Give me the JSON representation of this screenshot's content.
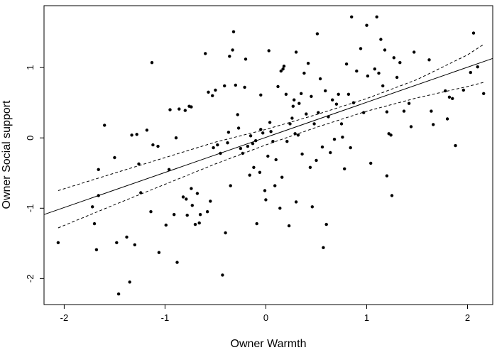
{
  "chart_data": {
    "type": "scatter",
    "title": "",
    "xlabel": "Owner Warmth",
    "ylabel": "Owner Social support",
    "xlim": [
      -2.2,
      2.25
    ],
    "ylim": [
      -2.37,
      1.88
    ],
    "xticks": [
      -2,
      -1,
      0,
      1,
      2
    ],
    "xtick_labels": [
      "-2",
      "-1",
      "0",
      "1",
      "2"
    ],
    "yticks": [
      -2,
      -1,
      0,
      1
    ],
    "ytick_labels": [
      "-2",
      "-1",
      "0",
      "1"
    ],
    "grid": false,
    "legend": "none",
    "point_color": "#000000",
    "points": [
      [
        -2.06,
        -1.49
      ],
      [
        -1.72,
        -0.98
      ],
      [
        -1.7,
        -1.22
      ],
      [
        -1.68,
        -1.59
      ],
      [
        -1.66,
        -0.45
      ],
      [
        -1.66,
        -0.82
      ],
      [
        -1.6,
        0.18
      ],
      [
        -1.5,
        -0.28
      ],
      [
        -1.48,
        -1.49
      ],
      [
        -1.46,
        -2.22
      ],
      [
        -1.38,
        -1.41
      ],
      [
        -1.35,
        -2.05
      ],
      [
        -1.33,
        0.04
      ],
      [
        -1.3,
        -1.52
      ],
      [
        -1.28,
        0.05
      ],
      [
        -1.26,
        -0.37
      ],
      [
        -1.24,
        -0.78
      ],
      [
        -1.18,
        0.11
      ],
      [
        -1.14,
        -1.05
      ],
      [
        -1.13,
        1.07
      ],
      [
        -1.12,
        -0.1
      ],
      [
        -1.07,
        -0.12
      ],
      [
        -1.06,
        -1.63
      ],
      [
        -0.99,
        -1.24
      ],
      [
        -0.96,
        -0.45
      ],
      [
        -0.95,
        0.4
      ],
      [
        -0.91,
        -1.09
      ],
      [
        -0.89,
        0.0
      ],
      [
        -0.88,
        -1.77
      ],
      [
        -0.86,
        0.41
      ],
      [
        -0.82,
        -0.84
      ],
      [
        -0.8,
        0.39
      ],
      [
        -0.79,
        -0.87
      ],
      [
        -0.78,
        -1.1
      ],
      [
        -0.76,
        0.45
      ],
      [
        -0.74,
        -0.72
      ],
      [
        -0.74,
        0.44
      ],
      [
        -0.73,
        -0.96
      ],
      [
        -0.7,
        -1.23
      ],
      [
        -0.68,
        -0.79
      ],
      [
        -0.66,
        -1.21
      ],
      [
        -0.65,
        -1.09
      ],
      [
        -0.6,
        1.2
      ],
      [
        -0.58,
        -1.05
      ],
      [
        -0.57,
        0.65
      ],
      [
        -0.55,
        -0.9
      ],
      [
        -0.53,
        0.6
      ],
      [
        -0.52,
        -0.14
      ],
      [
        -0.5,
        0.68
      ],
      [
        -0.48,
        -0.1
      ],
      [
        -0.45,
        -0.22
      ],
      [
        -0.43,
        -1.95
      ],
      [
        -0.41,
        0.74
      ],
      [
        -0.4,
        -1.35
      ],
      [
        -0.38,
        -0.07
      ],
      [
        -0.37,
        0.08
      ],
      [
        -0.36,
        1.16
      ],
      [
        -0.35,
        -0.68
      ],
      [
        -0.33,
        1.25
      ],
      [
        -0.32,
        1.51
      ],
      [
        -0.3,
        0.75
      ],
      [
        -0.28,
        0.33
      ],
      [
        -0.27,
        0.14
      ],
      [
        -0.25,
        -0.15
      ],
      [
        -0.23,
        -0.22
      ],
      [
        -0.21,
        0.72
      ],
      [
        -0.2,
        1.12
      ],
      [
        -0.18,
        -0.12
      ],
      [
        -0.16,
        -0.53
      ],
      [
        -0.15,
        0.03
      ],
      [
        -0.13,
        -0.08
      ],
      [
        -0.12,
        -0.42
      ],
      [
        -0.1,
        -0.04
      ],
      [
        -0.09,
        -1.22
      ],
      [
        -0.06,
        -0.49
      ],
      [
        -0.05,
        0.61
      ],
      [
        -0.03,
        0.07
      ],
      [
        -0.01,
        -0.75
      ],
      [
        0.0,
        -0.88
      ],
      [
        0.02,
        -0.26
      ],
      [
        0.03,
        1.24
      ],
      [
        0.04,
        0.22
      ],
      [
        0.05,
        0.09
      ],
      [
        0.07,
        -0.05
      ],
      [
        0.09,
        -0.68
      ],
      [
        0.1,
        -0.31
      ],
      [
        0.12,
        0.73
      ],
      [
        0.14,
        -1.0
      ],
      [
        0.16,
        -0.56
      ],
      [
        0.17,
        0.98
      ],
      [
        0.18,
        1.02
      ],
      [
        0.2,
        0.62
      ],
      [
        0.21,
        -0.05
      ],
      [
        0.23,
        -1.25
      ],
      [
        0.24,
        0.2
      ],
      [
        0.26,
        0.28
      ],
      [
        0.28,
        0.54
      ],
      [
        0.29,
        0.06
      ],
      [
        0.3,
        -0.91
      ],
      [
        0.3,
        1.22
      ],
      [
        0.32,
        0.04
      ],
      [
        0.33,
        0.49
      ],
      [
        0.35,
        0.63
      ],
      [
        0.36,
        -0.23
      ],
      [
        0.38,
        0.92
      ],
      [
        0.4,
        0.34
      ],
      [
        0.42,
        1.06
      ],
      [
        0.44,
        -0.42
      ],
      [
        0.45,
        0.59
      ],
      [
        0.46,
        -0.98
      ],
      [
        0.48,
        0.2
      ],
      [
        0.5,
        -0.32
      ],
      [
        0.51,
        1.48
      ],
      [
        0.52,
        0.36
      ],
      [
        0.54,
        0.84
      ],
      [
        0.56,
        -0.13
      ],
      [
        0.57,
        -1.56
      ],
      [
        0.59,
        0.67
      ],
      [
        0.6,
        -1.23
      ],
      [
        0.62,
        0.3
      ],
      [
        0.64,
        -0.21
      ],
      [
        0.66,
        0.54
      ],
      [
        0.68,
        -0.02
      ],
      [
        0.7,
        0.48
      ],
      [
        0.72,
        0.62
      ],
      [
        0.75,
        0.2
      ],
      [
        0.76,
        0.01
      ],
      [
        0.78,
        -0.44
      ],
      [
        0.8,
        1.05
      ],
      [
        0.82,
        0.62
      ],
      [
        0.84,
        -0.14
      ],
      [
        0.85,
        1.72
      ],
      [
        0.87,
        0.5
      ],
      [
        0.9,
        0.95
      ],
      [
        0.94,
        1.27
      ],
      [
        0.97,
        0.36
      ],
      [
        1.0,
        1.6
      ],
      [
        1.01,
        0.88
      ],
      [
        1.04,
        -0.36
      ],
      [
        1.08,
        0.98
      ],
      [
        1.1,
        1.72
      ],
      [
        1.12,
        0.92
      ],
      [
        1.14,
        1.4
      ],
      [
        1.16,
        0.74
      ],
      [
        1.18,
        1.25
      ],
      [
        1.2,
        -0.54
      ],
      [
        1.22,
        0.06
      ],
      [
        1.24,
        0.04
      ],
      [
        1.25,
        -0.82
      ],
      [
        1.27,
        1.14
      ],
      [
        1.3,
        0.86
      ],
      [
        1.33,
        1.07
      ],
      [
        1.37,
        0.38
      ],
      [
        1.42,
        0.49
      ],
      [
        1.44,
        0.16
      ],
      [
        1.47,
        1.22
      ],
      [
        1.62,
        1.11
      ],
      [
        1.64,
        0.38
      ],
      [
        1.66,
        0.19
      ],
      [
        1.78,
        0.67
      ],
      [
        1.8,
        0.27
      ],
      [
        1.82,
        0.58
      ],
      [
        1.85,
        0.56
      ],
      [
        1.88,
        -0.11
      ],
      [
        1.96,
        0.68
      ],
      [
        2.03,
        0.93
      ],
      [
        2.06,
        1.49
      ],
      [
        2.1,
        1.01
      ],
      [
        2.16,
        0.63
      ],
      [
        1.2,
        0.37
      ],
      [
        0.27,
        0.45
      ],
      [
        -0.05,
        0.12
      ],
      [
        0.15,
        0.95
      ]
    ],
    "lines": [
      {
        "style": "solid",
        "x": [
          -2.2,
          2.25
        ],
        "y": [
          -1.09,
          1.13
        ]
      },
      {
        "style": "dashed",
        "x": [
          -2.06,
          -1.5,
          -1.0,
          -0.5,
          0.0,
          0.5,
          1.0,
          1.5,
          2.0,
          2.16
        ],
        "y": [
          -0.75,
          -0.5,
          -0.28,
          -0.06,
          0.12,
          0.33,
          0.56,
          0.83,
          1.18,
          1.33
        ]
      },
      {
        "style": "dashed",
        "x": [
          -2.06,
          -1.5,
          -1.0,
          -0.5,
          0.0,
          0.5,
          1.0,
          1.5,
          2.0,
          2.16
        ],
        "y": [
          -1.28,
          -0.95,
          -0.66,
          -0.37,
          -0.1,
          0.15,
          0.38,
          0.57,
          0.73,
          0.79
        ]
      }
    ]
  }
}
